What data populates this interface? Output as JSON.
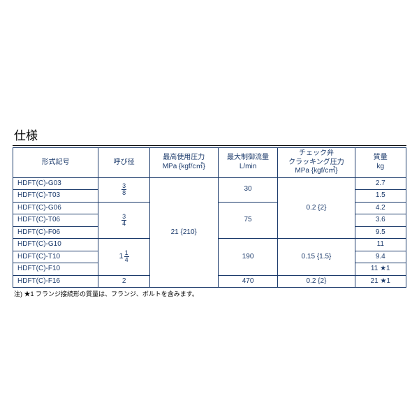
{
  "section_title": "仕様",
  "columns": {
    "model": "形式記号",
    "bore": "呼び径",
    "max_pressure": "最高使用圧力\nMPa {kgf/c㎡}",
    "max_flow": "最大制御流量\nL/min",
    "cracking": "チェック弁\nクラッキング圧力\nMPa {kgf/c㎡}",
    "mass": "質量\nkg"
  },
  "rows": {
    "r1_model": "HDFT(C)-G03",
    "r1_mass": "2.7",
    "r2_model": "HDFT(C)-T03",
    "r2_mass": "1.5",
    "r3_model": "HDFT(C)-G06",
    "r3_mass": "4.2",
    "r4_model": "HDFT(C)-T06",
    "r4_mass": "3.6",
    "r5_model": "HDFT(C)-F06",
    "r5_mass": "9.5",
    "r6_model": "HDFT(C)-G10",
    "r6_mass": "11",
    "r7_model": "HDFT(C)-T10",
    "r7_mass": "9.4",
    "r8_model": "HDFT(C)-F10",
    "r8_mass": "11 ★1",
    "r9_model": "HDFT(C)-F16",
    "r9_mass": "21 ★1"
  },
  "bore": {
    "b1_n": "3",
    "b1_d": "8",
    "b2_n": "3",
    "b2_d": "4",
    "b3_w": "1",
    "b3_n": "1",
    "b3_d": "4",
    "b4": "2"
  },
  "max_pressure": "21 {210}",
  "max_flow": {
    "f1": "30",
    "f2": "75",
    "f3": "190",
    "f4": "470"
  },
  "cracking": {
    "c1": "0.2  {2}",
    "c2": "0.15 {1.5}",
    "c3": "0.2  {2}"
  },
  "footnote": "注) ★1 フランジ接続形の質量は、フランジ、ボルトを含みます。",
  "style": {
    "border_color": "#1b3a6b",
    "text_color": "#1b3a6b",
    "col_widths": [
      "20%",
      "12%",
      "16%",
      "14%",
      "18%",
      "12%"
    ]
  }
}
